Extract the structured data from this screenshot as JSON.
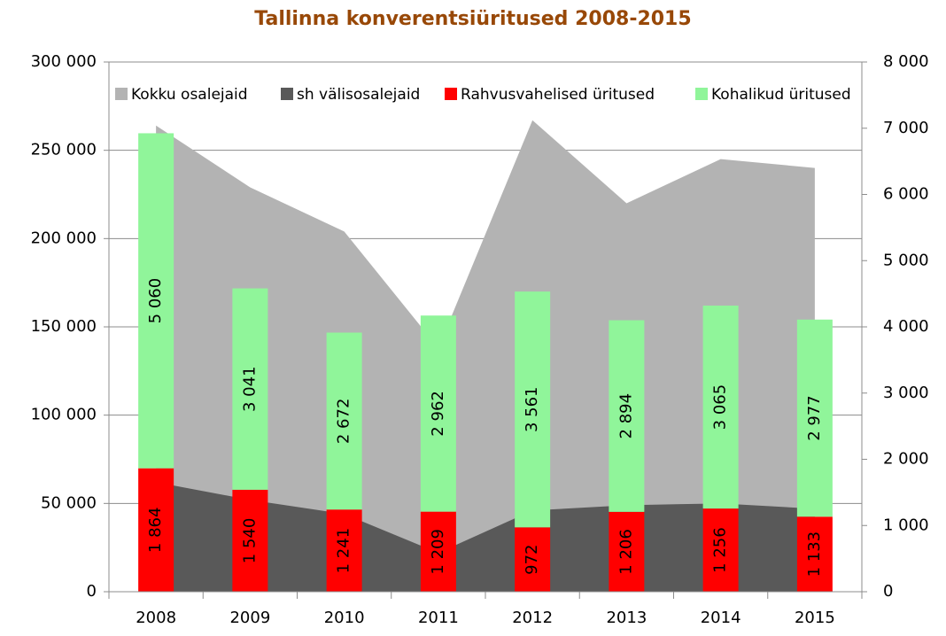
{
  "chart_data": {
    "type": "bar",
    "title": "Tallinna konverentsiüritused 2008-2015",
    "categories": [
      "2008",
      "2009",
      "2010",
      "2011",
      "2012",
      "2013",
      "2014",
      "2015"
    ],
    "series": [
      {
        "name": "Kokku osalejaid",
        "type": "area",
        "color": "#b3b3b3",
        "values": [
          264000,
          229000,
          204000,
          138000,
          267000,
          220000,
          245000,
          240000
        ]
      },
      {
        "name": "sh välisosalejaid",
        "type": "area",
        "color": "#595959",
        "values": [
          62000,
          52000,
          44000,
          22000,
          46000,
          49000,
          50000,
          47000
        ]
      },
      {
        "name": "Rahvusvahelised üritused",
        "type": "bar",
        "axis": "y2",
        "color": "#ff0000",
        "values": [
          1864,
          1540,
          1241,
          1209,
          972,
          1206,
          1256,
          1133
        ],
        "value_labels": [
          "1 864",
          "1 540",
          "1 241",
          "1 209",
          "972",
          "1 206",
          "1 256",
          "1 133"
        ]
      },
      {
        "name": "Kohalikud üritused",
        "type": "bar",
        "axis": "y2",
        "color": "#90f59a",
        "values": [
          5060,
          3041,
          2672,
          2962,
          3561,
          2894,
          3065,
          2977
        ],
        "value_labels": [
          "5 060",
          "3 041",
          "2 672",
          "2 962",
          "3 561",
          "2 894",
          "3 065",
          "2 977"
        ]
      }
    ],
    "ylim": [
      0,
      300000
    ],
    "yticks": [
      0,
      {
        "value": 50000,
        "label": "50 000"
      },
      {
        "value": 100000,
        "label": "100 000"
      },
      {
        "value": 150000,
        "label": "150 000"
      },
      {
        "value": 200000,
        "label": "200 000"
      },
      {
        "value": 250000,
        "label": "250 000"
      },
      {
        "value": 300000,
        "label": "300 000"
      }
    ],
    "y2lim": [
      0,
      8000
    ],
    "y2ticks": [
      0,
      {
        "value": 1000,
        "label": "1 000"
      },
      {
        "value": 2000,
        "label": "2 000"
      },
      {
        "value": 3000,
        "label": "3 000"
      },
      {
        "value": 4000,
        "label": "4 000"
      },
      {
        "value": 5000,
        "label": "5 000"
      },
      {
        "value": 6000,
        "label": "6 000"
      },
      {
        "value": 7000,
        "label": "7 000"
      },
      {
        "value": 8000,
        "label": "8 000"
      }
    ],
    "grid": true,
    "legend": "top",
    "title_color": "#984807"
  }
}
